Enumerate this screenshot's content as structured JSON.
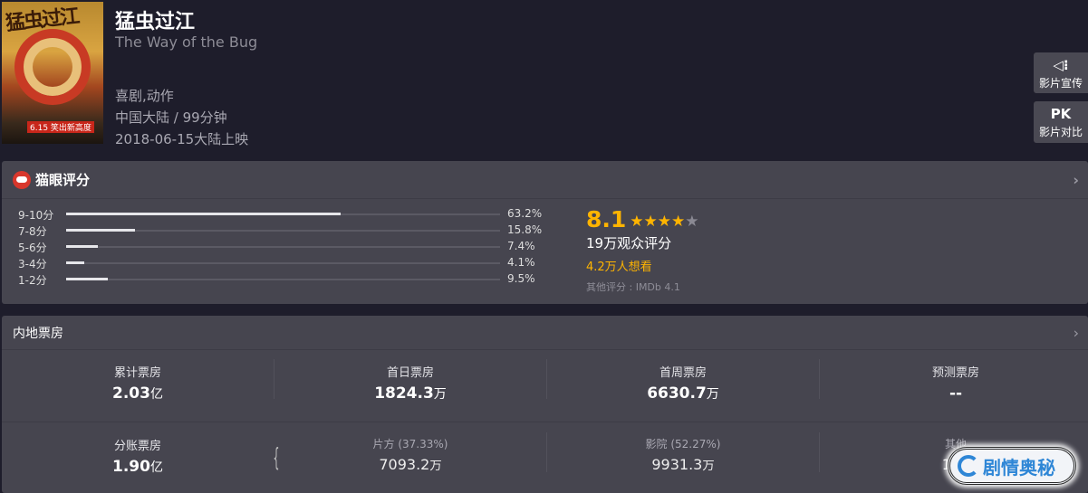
{
  "movie": {
    "title": "猛虫过江",
    "subtitle": "The Way of the Bug",
    "genres": "喜剧,动作",
    "region_duration": "中国大陆 / 99分钟",
    "release": "2018-06-15大陆上映",
    "poster_text": "猛虫过江",
    "poster_date": "6.15 笑出新高度"
  },
  "side_buttons": [
    {
      "icon": "speaker-icon",
      "icon_text": "◁⁝",
      "label": "影片宣传"
    },
    {
      "icon_text": "PK",
      "label": "影片对比"
    }
  ],
  "rating": {
    "header": "猫眼评分",
    "distribution": [
      {
        "label": "9-10分",
        "percent": 63.2,
        "text": "63.2%"
      },
      {
        "label": "7-8分",
        "percent": 15.8,
        "text": "15.8%"
      },
      {
        "label": "5-6分",
        "percent": 7.4,
        "text": "7.4%"
      },
      {
        "label": "3-4分",
        "percent": 4.1,
        "text": "4.1%"
      },
      {
        "label": "1-2分",
        "percent": 9.5,
        "text": "9.5%"
      }
    ],
    "score": "8.1",
    "stars": 4,
    "stars_total": 5,
    "audience": "19万观众评分",
    "want": "4.2万人想看",
    "other": "其他评分 : IMDb 4.1",
    "accent": "#ffb400"
  },
  "boxoffice": {
    "header": "内地票房",
    "row1": [
      {
        "label": "累计票房",
        "value": "2.03",
        "unit": "亿"
      },
      {
        "label": "首日票房",
        "value": "1824.3",
        "unit": "万"
      },
      {
        "label": "首周票房",
        "value": "6630.7",
        "unit": "万"
      },
      {
        "label": "预测票房",
        "value": "--",
        "unit": ""
      }
    ],
    "row2": [
      {
        "label": "分账票房",
        "value": "1.90",
        "unit": "亿"
      },
      {
        "label": "片方 (37.33%)",
        "value": "7093.2",
        "unit": "万"
      },
      {
        "label": "影院 (52.27%)",
        "value": "9931.3",
        "unit": "万"
      },
      {
        "label": "其他",
        "value": "197",
        "unit": ""
      }
    ]
  },
  "watermark": "剧情奥秘"
}
